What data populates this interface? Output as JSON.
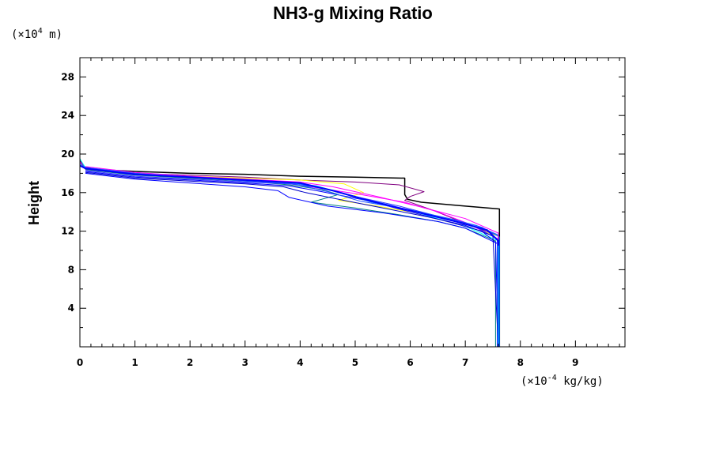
{
  "chart_data": {
    "type": "line",
    "title": "NH3-g Mixing Ratio",
    "ylabel": "Height",
    "xlabel": "",
    "y_unit": {
      "prefix": "(×10",
      "exp": "4",
      "suffix": " m)"
    },
    "x_unit": {
      "prefix": "(×10",
      "exp": "-4",
      "suffix": " kg/kg)"
    },
    "xlim": [
      0,
      9.9
    ],
    "ylim": [
      0,
      30
    ],
    "x_ticks": [
      "0",
      "1",
      "2",
      "3",
      "4",
      "5",
      "6",
      "7",
      "8",
      "9"
    ],
    "y_ticks": [
      "4",
      "8",
      "12",
      "16",
      "20",
      "24",
      "28"
    ],
    "series": [
      {
        "color": "#000000",
        "width": 1.5,
        "x": [
          0,
          0.05,
          0.3,
          1.0,
          2.0,
          3.0,
          4.0,
          5.0,
          5.9,
          5.9,
          5.95,
          6.2,
          7.0,
          7.62,
          7.62,
          7.62
        ],
        "y": [
          19.5,
          18.7,
          18.4,
          18.2,
          18.0,
          17.9,
          17.7,
          17.6,
          17.5,
          15.8,
          15.3,
          15.0,
          14.6,
          14.3,
          10.0,
          0
        ]
      },
      {
        "color": "#800080",
        "width": 1,
        "x": [
          0,
          0.1,
          1.0,
          2.0,
          3.0,
          4.0,
          5.0,
          5.8,
          6.25,
          6.0,
          5.9,
          6.4,
          7.0,
          7.6,
          7.6,
          7.6
        ],
        "y": [
          19.3,
          18.6,
          18.0,
          17.8,
          17.6,
          17.3,
          17.1,
          16.8,
          16.1,
          15.6,
          15.2,
          14.2,
          12.8,
          11.5,
          10,
          0
        ]
      },
      {
        "color": "#ffff00",
        "width": 1,
        "x": [
          0.1,
          1.0,
          2.0,
          3.0,
          4.0,
          4.8,
          5.15,
          4.7,
          5.4,
          6.0,
          6.8,
          7.6,
          7.6
        ],
        "y": [
          18.5,
          18.0,
          17.7,
          17.5,
          17.3,
          16.9,
          16.0,
          15.2,
          14.6,
          14.0,
          12.8,
          11.5,
          0
        ]
      },
      {
        "color": "#ff00ff",
        "width": 1,
        "x": [
          0,
          0.1,
          1.0,
          2.0,
          3.0,
          3.8,
          4.3,
          5.0,
          5.9,
          6.5,
          7.0,
          7.6,
          7.6,
          7.6
        ],
        "y": [
          19.2,
          18.4,
          17.9,
          17.6,
          17.3,
          17.0,
          16.5,
          15.9,
          15.0,
          14.0,
          12.9,
          11.2,
          10,
          0
        ]
      },
      {
        "color": "#00ffff",
        "width": 1,
        "x": [
          0,
          0,
          0.1,
          1.0,
          2.0,
          3.0,
          3.8,
          4.3,
          5.0,
          5.9,
          6.5,
          7.0,
          7.6,
          7.6
        ],
        "y": [
          30,
          19.5,
          18.6,
          18.1,
          17.7,
          17.3,
          17.0,
          16.7,
          15.6,
          14.3,
          13.3,
          12.5,
          11.0,
          0
        ]
      },
      {
        "color": "#008080",
        "width": 1,
        "x": [
          0.1,
          1.0,
          2.0,
          3.0,
          3.8,
          4.4,
          4.7,
          4.2,
          5.0,
          5.8,
          6.5,
          7.0,
          7.55,
          7.55
        ],
        "y": [
          18.4,
          17.8,
          17.5,
          17.2,
          16.8,
          16.3,
          15.8,
          15.0,
          14.4,
          13.7,
          13.0,
          12.3,
          11.0,
          0
        ]
      },
      {
        "color": "#0000ff",
        "width": 1,
        "x": [
          0.1,
          1.0,
          2.0,
          3.0,
          3.6,
          3.8,
          4.5,
          5.5,
          6.5,
          7.0,
          7.55,
          7.6
        ],
        "y": [
          18.0,
          17.4,
          17.0,
          16.6,
          16.2,
          15.5,
          14.6,
          13.9,
          13.0,
          12.3,
          10.8,
          0
        ]
      },
      {
        "color": "#0000ff",
        "width": 1,
        "x": [
          0.1,
          1.0,
          2.0,
          3.0,
          3.8,
          4.3,
          5.2,
          6.0,
          6.8,
          7.3,
          7.6,
          7.6
        ],
        "y": [
          18.2,
          17.6,
          17.3,
          17.0,
          16.7,
          16.2,
          15.2,
          14.0,
          12.8,
          12.0,
          10.6,
          0
        ]
      },
      {
        "color": "#3333ff",
        "width": 1,
        "x": [
          0.1,
          1.0,
          2.0,
          3.0,
          3.8,
          4.4,
          5.0,
          5.8,
          6.6,
          7.2,
          7.58,
          7.58
        ],
        "y": [
          18.3,
          17.7,
          17.4,
          17.1,
          16.9,
          16.5,
          15.6,
          14.6,
          13.4,
          12.4,
          11.2,
          0
        ]
      },
      {
        "color": "#0066ff",
        "width": 1,
        "x": [
          0,
          0.1,
          1.0,
          2.0,
          3.0,
          3.9,
          4.6,
          5.3,
          6.0,
          6.8,
          7.3,
          7.62,
          7.62
        ],
        "y": [
          19.0,
          18.6,
          18.0,
          17.6,
          17.3,
          17.0,
          16.2,
          15.0,
          14.2,
          13.2,
          12.4,
          11.4,
          0
        ]
      },
      {
        "color": "#0000cc",
        "width": 1,
        "x": [
          0.1,
          1.0,
          2.0,
          3.0,
          3.7,
          4.1,
          4.7,
          5.5,
          6.3,
          7.0,
          7.5,
          7.6
        ],
        "y": [
          18.1,
          17.5,
          17.2,
          16.9,
          16.6,
          16.0,
          15.3,
          14.4,
          13.5,
          12.6,
          11.5,
          0
        ]
      },
      {
        "color": "#2255ff",
        "width": 1,
        "x": [
          0.1,
          1.0,
          2.0,
          3.0,
          3.9,
          4.5,
          5.1,
          5.9,
          6.7,
          7.2,
          7.6,
          7.6
        ],
        "y": [
          18.6,
          18.0,
          17.6,
          17.2,
          16.9,
          16.1,
          15.1,
          14.3,
          13.3,
          12.6,
          11.6,
          0
        ]
      },
      {
        "color": "#ff00ff",
        "width": 1,
        "x": [
          0.1,
          1.0,
          2.0,
          3.0,
          4.0,
          4.6,
          5.4,
          6.2,
          7.0,
          7.6,
          7.6
        ],
        "y": [
          18.7,
          18.1,
          17.7,
          17.4,
          17.1,
          16.6,
          15.6,
          14.5,
          13.3,
          11.8,
          0
        ]
      },
      {
        "color": "#0000ff",
        "width": 2,
        "x": [
          0,
          0.1,
          1.0,
          2.0,
          3.0,
          4.0,
          4.6,
          5.3,
          6.1,
          6.9,
          7.4,
          7.6,
          7.6
        ],
        "y": [
          18.8,
          18.5,
          17.9,
          17.6,
          17.3,
          17.0,
          16.2,
          15.1,
          14.0,
          12.9,
          12.1,
          11.0,
          0
        ]
      },
      {
        "color": "#00aaff",
        "width": 1.5,
        "x": [
          7.6,
          7.6
        ],
        "y": [
          10.5,
          0
        ]
      }
    ]
  }
}
